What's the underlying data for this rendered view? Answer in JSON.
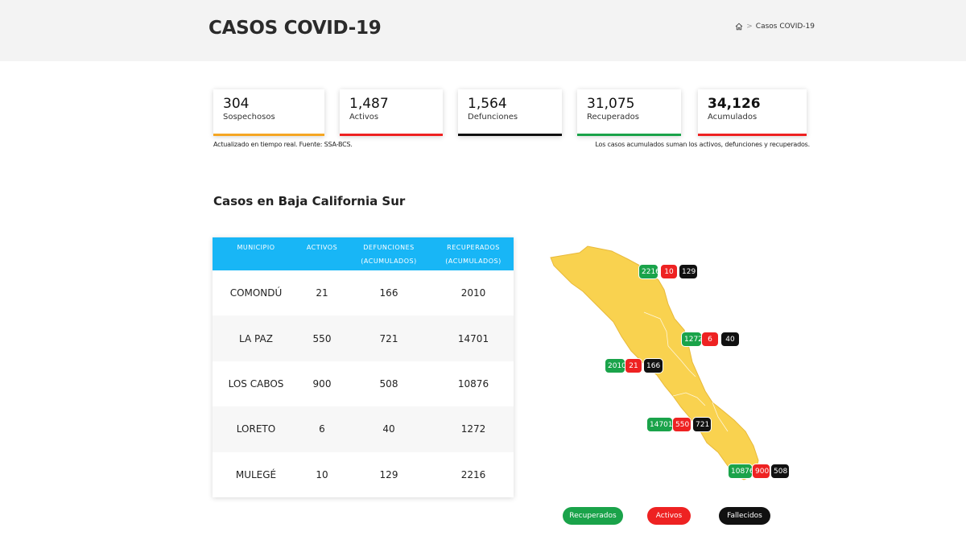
{
  "header": {
    "title": "CASOS COVID-19",
    "breadcrumb": {
      "home_icon": "home-icon",
      "separator": ">",
      "current": "Casos COVID-19"
    }
  },
  "stats": [
    {
      "value": "304",
      "label": "Sospechosos",
      "color": "#f5a623"
    },
    {
      "value": "1,487",
      "label": "Activos",
      "color": "#ee2222"
    },
    {
      "value": "1,564",
      "label": "Defunciones",
      "color": "#111111"
    },
    {
      "value": "31,075",
      "label": "Recuperados",
      "color": "#1aa34a"
    },
    {
      "value": "34,126",
      "label": "Acumulados",
      "color": "#ee2222"
    }
  ],
  "notes": {
    "left": "Actualizado en tiempo real. Fuente: SSA-BCS.",
    "right": "Los casos acumulados suman los activos, defunciones y recuperados."
  },
  "section_title": "Casos en Baja California Sur",
  "table": {
    "headers": [
      "MUNICIPIO",
      "ACTIVOS",
      "DEFUNCIONES (ACUMULADOS)",
      "RECUPERADOS (ACUMULADOS)"
    ],
    "rows": [
      [
        "COMONDÚ",
        "21",
        "166",
        "2010"
      ],
      [
        "LA PAZ",
        "550",
        "721",
        "14701"
      ],
      [
        "LOS CABOS",
        "900",
        "508",
        "10876"
      ],
      [
        "LORETO",
        "6",
        "40",
        "1272"
      ],
      [
        "MULEGÉ",
        "10",
        "129",
        "2216"
      ]
    ]
  },
  "map": {
    "fill_color": "#f9d24f",
    "markers": [
      {
        "municipio": "MULEGÉ",
        "recuperados": "2216",
        "activos": "10",
        "fallecidos": "129"
      },
      {
        "municipio": "LORETO",
        "recuperados": "1272",
        "activos": "6",
        "fallecidos": "40"
      },
      {
        "municipio": "COMONDÚ",
        "recuperados": "2010",
        "activos": "21",
        "fallecidos": "166"
      },
      {
        "municipio": "LA PAZ",
        "recuperados": "14701",
        "activos": "550",
        "fallecidos": "721"
      },
      {
        "municipio": "LOS CABOS",
        "recuperados": "10876",
        "activos": "900",
        "fallecidos": "508"
      }
    ]
  },
  "legend": [
    {
      "label": "Recuperados",
      "color": "#1aa34a"
    },
    {
      "label": "Activos",
      "color": "#ee2222"
    },
    {
      "label": "Fallecidos",
      "color": "#111111"
    }
  ]
}
